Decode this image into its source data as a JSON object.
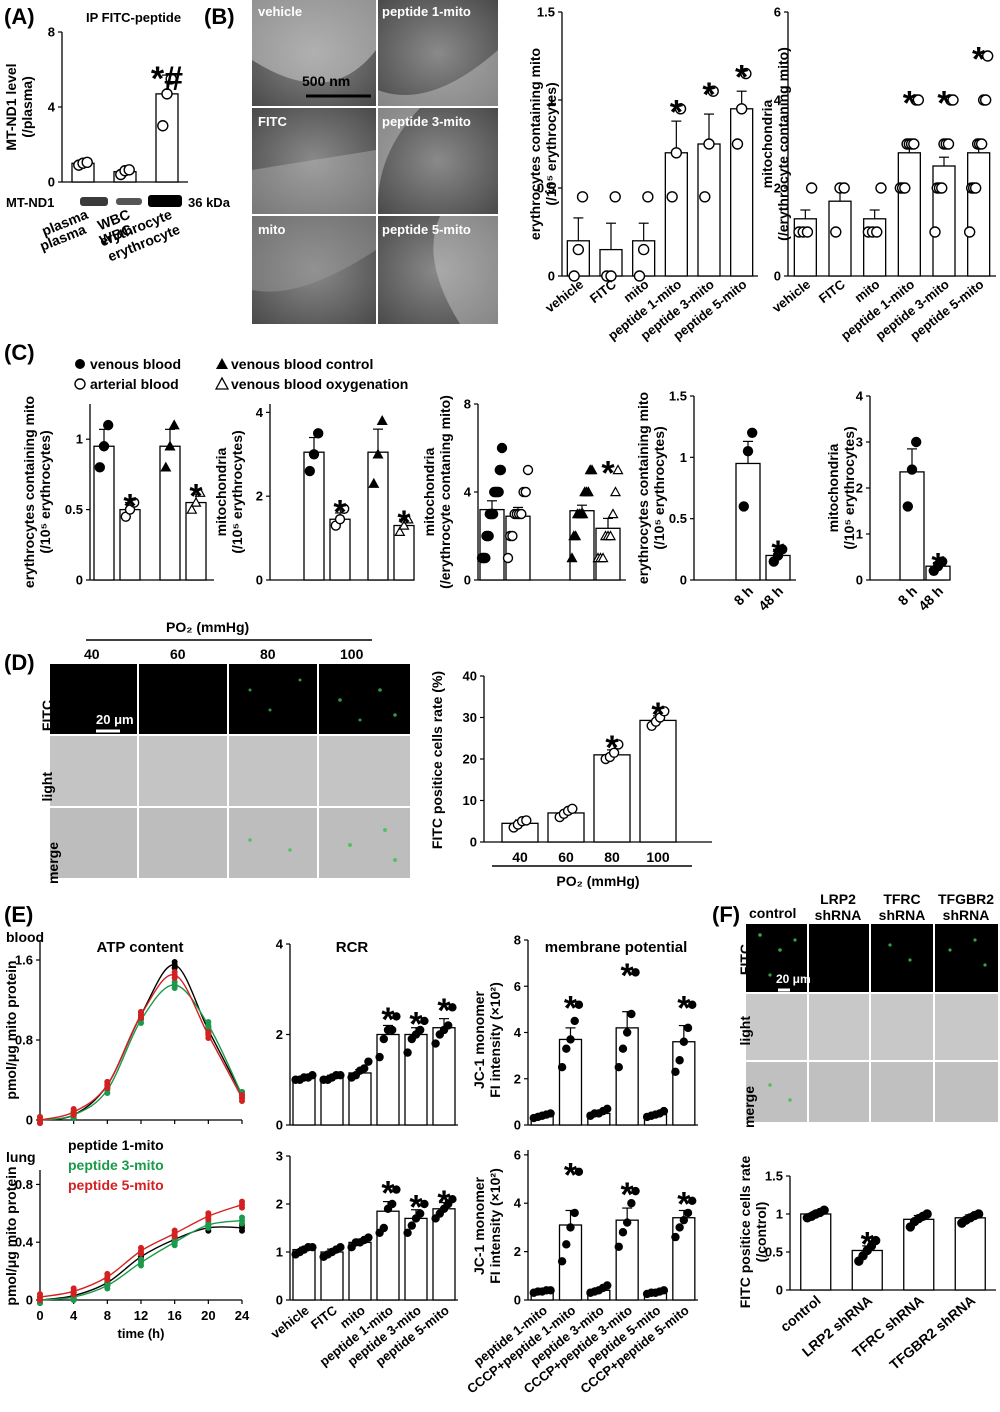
{
  "panels": {
    "A": "(A)",
    "B": "(B)",
    "C": "(C)",
    "D": "(D)",
    "E": "(E)",
    "F": "(F)"
  },
  "panelA": {
    "title": "IP FITC-peptide",
    "blot_label": "MT-ND1",
    "kda": "36 kDa",
    "star": "*#"
  },
  "panelB_images": {
    "vehicle": "vehicle",
    "p1": "peptide 1-mito",
    "fitc": "FITC",
    "p3": "peptide 3-mito",
    "mito": "mito",
    "p5": "peptide 5-mito",
    "scale": "500 nm"
  },
  "panelC_legend": {
    "venous": "venous blood",
    "arterial": "arterial blood",
    "control": "venous blood control",
    "oxy": "venous blood oxygenation"
  },
  "panelD": {
    "header": "PO₂ (mmHg)",
    "cols": [
      "40",
      "60",
      "80",
      "100"
    ],
    "rows": [
      "FITC",
      "light",
      "merge"
    ],
    "scale": "20 μm"
  },
  "panelE": {
    "row1": "blood",
    "row2": "lung",
    "legend": [
      {
        "name": "peptide 1-mito",
        "color": "#000000"
      },
      {
        "name": "peptide 3-mito",
        "color": "#1a9a4a"
      },
      {
        "name": "peptide 5-mito",
        "color": "#d42020"
      }
    ]
  },
  "panelF_images": {
    "cols": [
      "control",
      "LRP2\nshRNA",
      "TFRC\nshRNA",
      "TFGBR2\nshRNA"
    ],
    "rows": [
      "FITC",
      "light",
      "merge"
    ],
    "scale": "20 μm"
  },
  "chart_data": [
    {
      "id": "A",
      "type": "bar",
      "categories": [
        "plasma",
        "WBC",
        "erythrocyte"
      ],
      "values": [
        1.0,
        0.55,
        4.7
      ],
      "errors": [
        0.1,
        0.15,
        1.0
      ],
      "points": [
        [
          0.9,
          1.0,
          1.05
        ],
        [
          0.4,
          0.6,
          0.65
        ],
        [
          3.0,
          4.7,
          5.5
        ]
      ],
      "ylabel": "MT-ND1 level\n(/plasma)",
      "ylim": [
        0,
        8
      ],
      "yticks": [
        0,
        4,
        8
      ],
      "stars": [
        "",
        "",
        "*#"
      ],
      "marker": "open"
    },
    {
      "id": "B1",
      "type": "bar",
      "categories": [
        "vehicle",
        "FITC",
        "mito",
        "peptide 1-mito",
        "peptide 3-mito",
        "peptide 5-mito"
      ],
      "values": [
        0.2,
        0.15,
        0.2,
        0.7,
        0.75,
        0.95
      ],
      "errors": [
        0.13,
        0.15,
        0.1,
        0.18,
        0.17,
        0.1
      ],
      "points": [
        [
          0,
          0.15,
          0.45
        ],
        [
          0,
          0,
          0.45
        ],
        [
          0,
          0.15,
          0.45
        ],
        [
          0.45,
          0.7,
          0.95
        ],
        [
          0.45,
          0.75,
          1.05
        ],
        [
          0.75,
          0.95,
          1.15
        ]
      ],
      "ylabel": "erythrocytes containing mito\n(/10⁵ erythrocytes)",
      "ylim": [
        0,
        1.5
      ],
      "yticks": [
        0,
        0.5,
        1.0,
        1.5
      ],
      "stars": [
        "",
        "",
        "",
        "*",
        "*",
        "*"
      ],
      "marker": "open"
    },
    {
      "id": "B2",
      "type": "bar",
      "categories": [
        "vehicle",
        "FITC",
        "mito",
        "peptide 1-mito",
        "peptide 3-mito",
        "peptide 5-mito"
      ],
      "values": [
        1.3,
        1.7,
        1.3,
        2.8,
        2.5,
        2.8
      ],
      "errors": [
        0.2,
        0.3,
        0.2,
        0.2,
        0.2,
        0.25
      ],
      "points": [
        [
          1,
          1,
          1,
          2
        ],
        [
          1,
          2,
          2
        ],
        [
          1,
          1,
          1,
          2
        ],
        [
          2,
          2,
          2,
          3,
          3,
          3,
          3,
          4,
          4
        ],
        [
          1,
          2,
          2,
          2,
          3,
          3,
          3,
          4,
          4
        ],
        [
          1,
          2,
          2,
          2,
          3,
          3,
          3,
          4,
          4,
          5
        ]
      ],
      "ylabel": "mitochondria\n(/erythrocyte contaning mito)",
      "ylim": [
        0,
        6
      ],
      "yticks": [
        0,
        2,
        4,
        6
      ],
      "stars": [
        "",
        "",
        "",
        "*",
        "*",
        "*"
      ],
      "marker": "open"
    },
    {
      "id": "C1",
      "type": "bar",
      "groups": [
        [
          "venous blood",
          "arterial blood"
        ],
        [
          "venous blood control",
          "venous blood oxygenation"
        ]
      ],
      "values": [
        0.95,
        0.5,
        0.95,
        0.55
      ],
      "errors": [
        0.12,
        0.05,
        0.12,
        0.06
      ],
      "points": [
        [
          0.8,
          0.95,
          1.1
        ],
        [
          0.45,
          0.5,
          0.55
        ],
        [
          0.8,
          0.95,
          1.1
        ],
        [
          0.5,
          0.55,
          0.62
        ]
      ],
      "markers": [
        "fill-circle",
        "open-circle",
        "fill-tri",
        "open-tri"
      ],
      "ylabel": "erythrocytes containing mito\n(/10⁵ erythrocytes)",
      "ylim": [
        0,
        1.25
      ],
      "yticks": [
        0,
        0.5,
        1.0
      ],
      "stars": [
        "",
        "*",
        "",
        "*"
      ]
    },
    {
      "id": "C2",
      "type": "bar",
      "values": [
        3.05,
        1.45,
        3.05,
        1.3
      ],
      "errors": [
        0.35,
        0.15,
        0.55,
        0.15
      ],
      "points": [
        [
          2.6,
          3.0,
          3.5
        ],
        [
          1.3,
          1.45,
          1.7
        ],
        [
          2.3,
          3.0,
          3.8
        ],
        [
          1.15,
          1.3,
          1.45
        ]
      ],
      "markers": [
        "fill-circle",
        "open-circle",
        "fill-tri",
        "open-tri"
      ],
      "ylabel": "mitochondria\n(/10⁵ erythrocytes)",
      "ylim": [
        0,
        4.2
      ],
      "yticks": [
        0,
        2,
        4
      ],
      "stars": [
        "",
        "*",
        "",
        "*"
      ]
    },
    {
      "id": "C3",
      "type": "bar",
      "values": [
        3.2,
        2.9,
        3.15,
        2.35
      ],
      "errors": [
        0.4,
        0.4,
        0.25,
        0.45
      ],
      "points": [
        [
          1,
          1,
          1,
          1,
          2,
          2,
          2,
          3,
          3,
          3,
          3,
          4,
          4,
          4,
          4,
          4,
          5,
          5,
          6
        ],
        [
          1,
          2,
          2,
          3,
          3,
          3,
          3,
          4,
          4,
          5
        ],
        [
          1,
          2,
          2,
          3,
          3,
          3,
          3,
          4,
          4,
          4,
          5,
          5
        ],
        [
          1,
          1,
          1,
          2,
          2,
          2,
          3,
          4,
          5
        ]
      ],
      "markers": [
        "fill-circle",
        "open-circle",
        "fill-tri",
        "open-tri"
      ],
      "ylabel": "mitochondria\n(/erythrocyte contaning mito)",
      "ylim": [
        0,
        8
      ],
      "yticks": [
        0,
        4,
        8
      ],
      "stars": [
        "",
        "",
        "",
        "*"
      ]
    },
    {
      "id": "C4",
      "type": "bar",
      "categories": [
        "8 h",
        "48 h"
      ],
      "values": [
        0.95,
        0.2
      ],
      "errors": [
        0.18,
        0.05
      ],
      "points": [
        [
          0.6,
          1.05,
          1.2
        ],
        [
          0.15,
          0.2,
          0.25
        ]
      ],
      "markers": [
        "fill-circle",
        "fill-circle"
      ],
      "ylabel": "erythrocytes containing mito\n(/10⁵ erythrocytes)",
      "ylim": [
        0,
        1.5
      ],
      "yticks": [
        0,
        0.5,
        1.0,
        1.5
      ],
      "stars": [
        "",
        "*"
      ]
    },
    {
      "id": "C5",
      "type": "bar",
      "categories": [
        "8 h",
        "48 h"
      ],
      "values": [
        2.35,
        0.3
      ],
      "errors": [
        0.5,
        0.08
      ],
      "points": [
        [
          1.6,
          2.4,
          3.0
        ],
        [
          0.2,
          0.3,
          0.4
        ]
      ],
      "markers": [
        "fill-circle",
        "fill-circle"
      ],
      "ylabel": "mitochondria\n(/10⁵ erythrocytes)",
      "ylim": [
        0,
        4
      ],
      "yticks": [
        0,
        1,
        2,
        3,
        4
      ],
      "stars": [
        "",
        "*"
      ]
    },
    {
      "id": "D",
      "type": "bar",
      "categories": [
        "40",
        "60",
        "80",
        "100"
      ],
      "values": [
        4.5,
        7.0,
        21,
        29.3
      ],
      "errors": [
        0.8,
        0.7,
        1.2,
        1.1
      ],
      "points": [
        [
          3.5,
          4.2,
          5.0,
          5.2
        ],
        [
          6.0,
          6.8,
          7.5,
          8.0
        ],
        [
          20,
          20.5,
          21.5,
          23.5
        ],
        [
          28,
          29,
          30,
          31.5
        ]
      ],
      "marker": "open",
      "ylabel": "FITC positice cells rate (%)",
      "xlabel": "PO₂ (mmHg)",
      "ylim": [
        0,
        40
      ],
      "yticks": [
        0,
        10,
        20,
        30,
        40
      ],
      "stars": [
        "",
        "",
        "*",
        "*"
      ]
    },
    {
      "id": "E1",
      "type": "line",
      "title": "ATP content",
      "ylabel": "pmol/μg mito protein",
      "ylim": [
        0,
        1.8
      ],
      "yticks": [
        0,
        0.8,
        1.6
      ],
      "yticklabels": [
        "0",
        "0.8",
        "1.6"
      ],
      "x": [
        0,
        4,
        8,
        12,
        16,
        20,
        24
      ],
      "xlim": [
        0,
        24
      ],
      "series": [
        {
          "name": "peptide 1-mito",
          "values": [
            0,
            0.05,
            0.35,
            1.05,
            1.55,
            0.9,
            0.25
          ]
        },
        {
          "name": "peptide 3-mito",
          "values": [
            0,
            0.05,
            0.3,
            1.0,
            1.35,
            0.95,
            0.25
          ]
        },
        {
          "name": "peptide 5-mito",
          "values": [
            0,
            0.08,
            0.35,
            1.05,
            1.45,
            0.85,
            0.22
          ]
        }
      ]
    },
    {
      "id": "E2",
      "type": "bar",
      "title": "RCR",
      "categories": [
        "vehicle",
        "FITC",
        "mito",
        "peptide 1-mito",
        "peptide 3-mito",
        "peptide 5-mito"
      ],
      "values": [
        1.05,
        1.05,
        1.15,
        2.0,
        2.0,
        2.15
      ],
      "errors": [
        0.03,
        0.05,
        0.07,
        0.2,
        0.15,
        0.2
      ],
      "points": [
        [
          1.0,
          1.0,
          1.05,
          1.05,
          1.1
        ],
        [
          1.0,
          1.0,
          1.05,
          1.1,
          1.1
        ],
        [
          1.05,
          1.1,
          1.2,
          1.25,
          1.4
        ],
        [
          1.5,
          1.9,
          2.1,
          2.1,
          2.4
        ],
        [
          1.6,
          1.9,
          2.0,
          2.1,
          2.3
        ],
        [
          1.8,
          2.0,
          2.1,
          2.2,
          2.6
        ]
      ],
      "marker": "fill",
      "ylim": [
        0,
        4
      ],
      "yticks": [
        0,
        2,
        4
      ],
      "stars": [
        "",
        "",
        "",
        "*",
        "*",
        "*"
      ]
    },
    {
      "id": "E3",
      "type": "bar",
      "title": "membrane potential",
      "categories": [
        "peptide 1-mito",
        "CCCP+peptide 1-mito",
        "peptide 3-mito",
        "CCCP+peptide 3-mito",
        "peptide 5-mito",
        "CCCP+peptide 5-mito"
      ],
      "values": [
        0.4,
        3.7,
        0.5,
        4.2,
        0.45,
        3.6
      ],
      "errors": [
        0.1,
        0.5,
        0.1,
        0.7,
        0.1,
        0.7
      ],
      "points": [
        [
          0.3,
          0.35,
          0.4,
          0.45,
          0.5
        ],
        [
          2.5,
          3.3,
          3.7,
          4.5,
          5.2
        ],
        [
          0.4,
          0.5,
          0.5,
          0.6,
          0.7
        ],
        [
          2.5,
          3.3,
          4.0,
          4.8,
          6.6
        ],
        [
          0.35,
          0.4,
          0.45,
          0.5,
          0.6
        ],
        [
          2.3,
          2.8,
          3.6,
          4.2,
          5.2
        ]
      ],
      "marker": "fill",
      "ylabel": "JC-1 monomer\nFI intensity (×10²)",
      "ylim": [
        0,
        8
      ],
      "yticks": [
        0,
        2,
        4,
        6,
        8
      ],
      "stars": [
        "",
        "*",
        "",
        "*",
        "",
        "*"
      ]
    },
    {
      "id": "E4",
      "type": "line",
      "ylabel": "pmol/μg mito protein",
      "ylim": [
        0,
        0.9
      ],
      "yticks": [
        0,
        0.4,
        0.8
      ],
      "yticklabels": [
        "0",
        "0.4",
        "0.8"
      ],
      "x": [
        0,
        4,
        8,
        12,
        16,
        20,
        24
      ],
      "xlim": [
        0,
        24
      ],
      "xlabel": "time (h)",
      "xticks": [
        0,
        4,
        8,
        12,
        16,
        20,
        24
      ],
      "series": [
        {
          "name": "peptide 1-mito",
          "values": [
            0.0,
            0.03,
            0.12,
            0.3,
            0.42,
            0.5,
            0.5
          ]
        },
        {
          "name": "peptide 3-mito",
          "values": [
            0.0,
            0.02,
            0.1,
            0.26,
            0.4,
            0.52,
            0.55
          ]
        },
        {
          "name": "peptide 5-mito",
          "values": [
            0.02,
            0.06,
            0.16,
            0.34,
            0.46,
            0.58,
            0.66
          ]
        }
      ]
    },
    {
      "id": "E5",
      "type": "bar",
      "categories": [
        "vehicle",
        "FITC",
        "mito",
        "peptide 1-mito",
        "peptide 3-mito",
        "peptide 5-mito"
      ],
      "values": [
        1.05,
        1.0,
        1.2,
        1.85,
        1.7,
        1.9
      ],
      "errors": [
        0.05,
        0.06,
        0.07,
        0.2,
        0.18,
        0.13
      ],
      "points": [
        [
          0.95,
          1.0,
          1.05,
          1.1,
          1.1
        ],
        [
          0.9,
          0.95,
          1.0,
          1.05,
          1.1
        ],
        [
          1.1,
          1.2,
          1.2,
          1.25,
          1.3
        ],
        [
          1.4,
          1.5,
          1.9,
          2.0,
          2.3
        ],
        [
          1.4,
          1.55,
          1.7,
          1.8,
          2.0
        ],
        [
          1.7,
          1.8,
          1.9,
          2.0,
          2.1
        ]
      ],
      "marker": "fill",
      "ylim": [
        0,
        3
      ],
      "yticks": [
        0,
        1,
        2,
        3
      ],
      "stars": [
        "",
        "",
        "",
        "*",
        "*",
        "*"
      ]
    },
    {
      "id": "E6",
      "type": "bar",
      "categories": [
        "peptide 1-mito",
        "CCCP+peptide 1-mito",
        "peptide 3-mito",
        "CCCP+peptide 3-mito",
        "peptide 5-mito",
        "CCCP+peptide 5-mito"
      ],
      "values": [
        0.35,
        3.1,
        0.4,
        3.3,
        0.3,
        3.4
      ],
      "errors": [
        0.05,
        0.6,
        0.1,
        0.5,
        0.05,
        0.3
      ],
      "points": [
        [
          0.3,
          0.35,
          0.35,
          0.4,
          0.4
        ],
        [
          1.6,
          2.3,
          3.0,
          3.6,
          5.3
        ],
        [
          0.3,
          0.35,
          0.4,
          0.5,
          0.6
        ],
        [
          2.2,
          2.8,
          3.2,
          4.0,
          4.5
        ],
        [
          0.25,
          0.3,
          0.3,
          0.35,
          0.4
        ],
        [
          2.6,
          3.0,
          3.3,
          3.6,
          4.1
        ]
      ],
      "marker": "fill",
      "ylabel": "JC-1 monomer\nFI intensity (×10²)",
      "ylim": [
        0,
        6.2
      ],
      "yticks": [
        0,
        2,
        4,
        6
      ],
      "stars": [
        "",
        "*",
        "",
        "*",
        "",
        "*"
      ]
    },
    {
      "id": "F",
      "type": "bar",
      "categories": [
        "control",
        "LRP2 shRNA",
        "TFRC shRNA",
        "TFGBR2 shRNA"
      ],
      "values": [
        1.0,
        0.52,
        0.93,
        0.95
      ],
      "errors": [
        0.03,
        0.06,
        0.05,
        0.04
      ],
      "points": [
        [
          0.95,
          0.97,
          1.0,
          1.02,
          1.05
        ],
        [
          0.38,
          0.45,
          0.52,
          0.58,
          0.65
        ],
        [
          0.83,
          0.9,
          0.94,
          0.97,
          1.0
        ],
        [
          0.88,
          0.92,
          0.95,
          0.98,
          1.0
        ]
      ],
      "marker": "fill",
      "ylabel": "FITC positice cells rate\n(/control)",
      "ylim": [
        0,
        1.5
      ],
      "yticks": [
        0,
        0.5,
        1.0,
        1.5
      ],
      "stars": [
        "",
        "*",
        "",
        ""
      ]
    }
  ]
}
